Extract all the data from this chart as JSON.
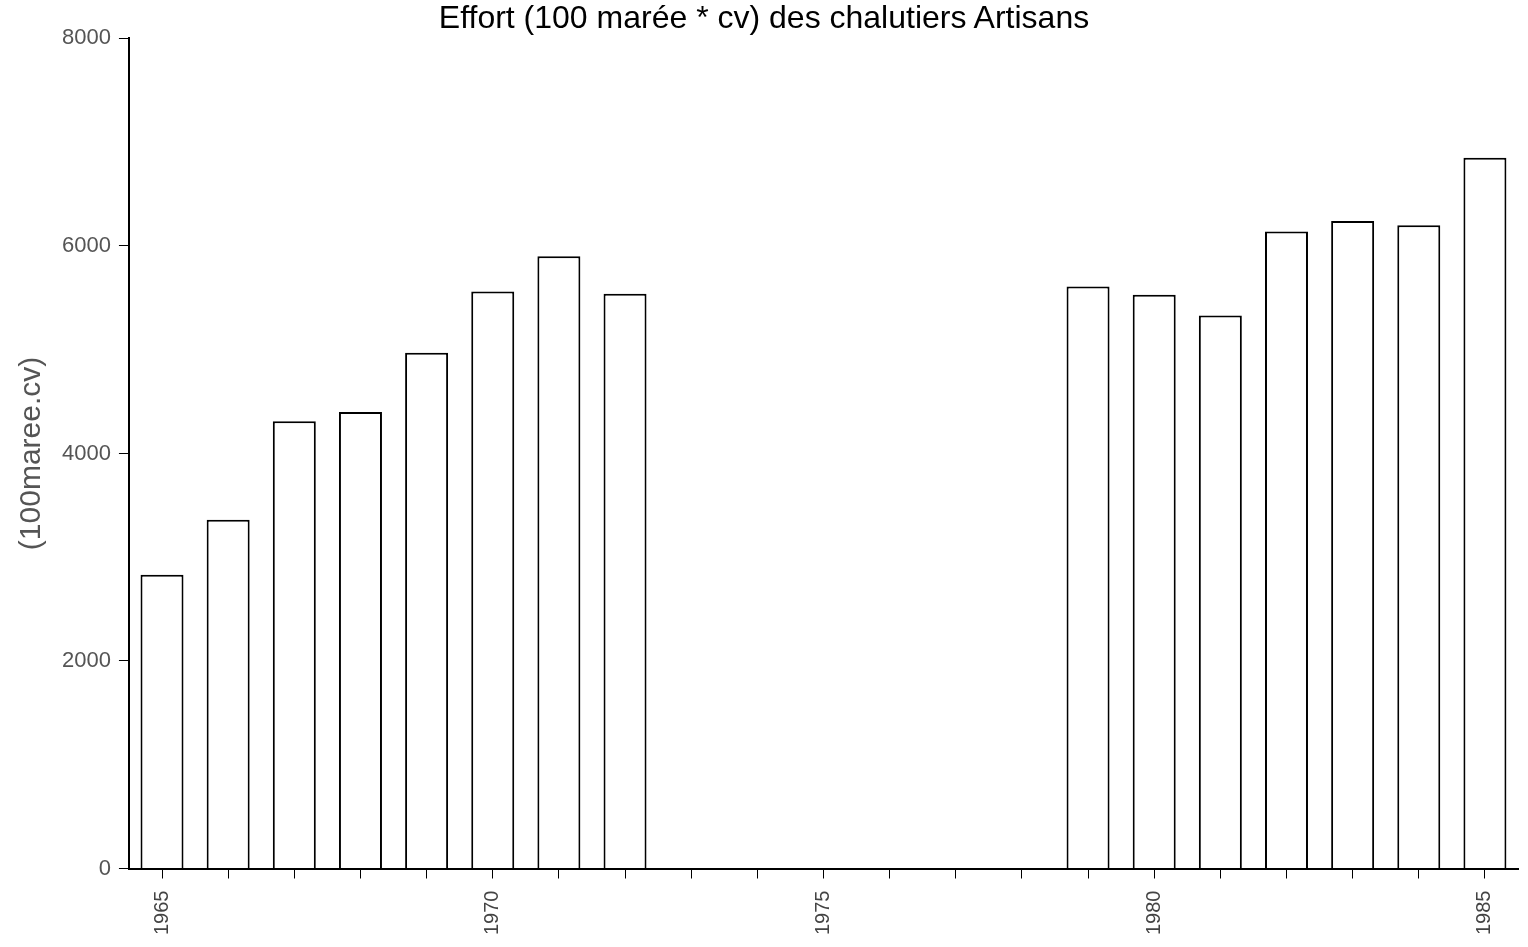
{
  "chart_data": {
    "type": "bar",
    "title": "Effort (100 marée * cv) des chalutiers Artisans",
    "ylabel": "(100maree.cv)",
    "categories": [
      "1965",
      null,
      null,
      null,
      null,
      "1970",
      null,
      null,
      null,
      null,
      "1975",
      null,
      null,
      null,
      null,
      "1980",
      null,
      null,
      null,
      null,
      "1985"
    ],
    "values": [
      2830,
      3360,
      4310,
      4400,
      4970,
      5560,
      5900,
      5540,
      null,
      null,
      null,
      null,
      null,
      null,
      5610,
      5530,
      5330,
      6140,
      6240,
      6200,
      6850
    ],
    "color": "#ffffff",
    "ylim": [
      0,
      8000
    ],
    "yticks": [
      0,
      2000,
      4000,
      6000,
      8000
    ],
    "grid": false
  }
}
